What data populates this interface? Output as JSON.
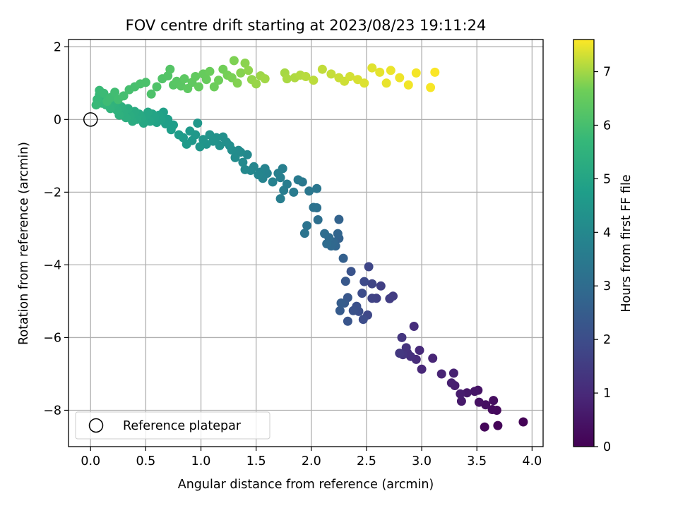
{
  "chart_data": {
    "type": "scatter",
    "title": "FOV centre drift starting at 2023/08/23 19:11:24",
    "xlabel": "Angular distance from reference (arcmin)",
    "ylabel": "Rotation from reference (arcmin)",
    "xlim": [
      -0.2,
      4.1
    ],
    "ylim": [
      -9.0,
      2.2
    ],
    "xticks": [
      0.0,
      0.5,
      1.0,
      1.5,
      2.0,
      2.5,
      3.0,
      3.5,
      4.0
    ],
    "xtick_labels": [
      "0.0",
      "0.5",
      "1.0",
      "1.5",
      "2.0",
      "2.5",
      "3.0",
      "3.5",
      "4.0"
    ],
    "yticks": [
      2,
      0,
      -2,
      -4,
      -6,
      -8
    ],
    "ytick_labels": [
      "2",
      "0",
      "−2",
      "−4",
      "−6",
      "−8"
    ],
    "grid": true,
    "legend": {
      "placement": "lower-left",
      "entries": [
        "Reference platepar"
      ]
    },
    "reference_point": {
      "x": 0.0,
      "y": 0.0,
      "label": "Reference platepar"
    },
    "colorbar": {
      "label": "Hours from first FF file",
      "colormap": "viridis",
      "range": [
        0,
        7.6
      ],
      "ticks": [
        0,
        1,
        2,
        3,
        4,
        5,
        6,
        7
      ],
      "tick_labels": [
        "0",
        "1",
        "2",
        "3",
        "4",
        "5",
        "6",
        "7"
      ]
    },
    "series": [
      {
        "color_by": "hours",
        "points": [
          [
            3.92,
            -8.32,
            0.05
          ],
          [
            3.69,
            -8.42,
            0.1
          ],
          [
            3.57,
            -8.46,
            0.15
          ],
          [
            3.68,
            -8.0,
            0.2
          ],
          [
            3.64,
            -7.98,
            0.25
          ],
          [
            3.65,
            -7.73,
            0.3
          ],
          [
            3.58,
            -7.85,
            0.35
          ],
          [
            3.52,
            -7.78,
            0.4
          ],
          [
            3.51,
            -7.45,
            0.45
          ],
          [
            3.48,
            -7.48,
            0.5
          ],
          [
            3.41,
            -7.52,
            0.55
          ],
          [
            3.36,
            -7.75,
            0.6
          ],
          [
            3.35,
            -7.55,
            0.65
          ],
          [
            3.3,
            -7.32,
            0.7
          ],
          [
            3.27,
            -7.25,
            0.75
          ],
          [
            3.29,
            -6.98,
            0.8
          ],
          [
            3.18,
            -7.0,
            0.85
          ],
          [
            3.1,
            -6.57,
            0.9
          ],
          [
            3.0,
            -6.87,
            0.95
          ],
          [
            2.98,
            -6.35,
            1.0
          ],
          [
            2.95,
            -6.6,
            1.05
          ],
          [
            2.93,
            -5.69,
            1.1
          ],
          [
            2.9,
            -6.52,
            1.15
          ],
          [
            2.87,
            -6.42,
            1.2
          ],
          [
            2.86,
            -6.28,
            1.25
          ],
          [
            2.83,
            -6.47,
            1.3
          ],
          [
            2.82,
            -6.0,
            1.35
          ],
          [
            2.8,
            -6.43,
            1.4
          ],
          [
            2.74,
            -4.86,
            1.5
          ],
          [
            2.71,
            -4.93,
            1.55
          ],
          [
            2.63,
            -4.58,
            1.6
          ],
          [
            2.59,
            -4.92,
            1.65
          ],
          [
            2.55,
            -4.92,
            1.7
          ],
          [
            2.55,
            -4.52,
            1.75
          ],
          [
            2.52,
            -4.05,
            1.8
          ],
          [
            2.51,
            -5.38,
            1.85
          ],
          [
            2.48,
            -4.46,
            1.9
          ],
          [
            2.46,
            -4.78,
            1.95
          ],
          [
            2.47,
            -5.5,
            2.0
          ],
          [
            2.43,
            -5.28,
            2.05
          ],
          [
            2.41,
            -5.14,
            2.1
          ],
          [
            2.38,
            -5.26,
            2.15
          ],
          [
            2.36,
            -4.18,
            2.2
          ],
          [
            2.33,
            -5.55,
            2.25
          ],
          [
            2.33,
            -4.9,
            2.3
          ],
          [
            2.31,
            -4.45,
            2.35
          ],
          [
            2.3,
            -5.05,
            2.4
          ],
          [
            2.26,
            -5.26,
            2.45
          ],
          [
            2.27,
            -5.05,
            2.5
          ],
          [
            2.29,
            -3.82,
            2.6
          ],
          [
            2.25,
            -3.27,
            2.65
          ],
          [
            2.25,
            -2.75,
            2.7
          ],
          [
            2.24,
            -3.14,
            2.75
          ],
          [
            2.22,
            -3.48,
            2.8
          ],
          [
            2.2,
            -3.37,
            2.85
          ],
          [
            2.18,
            -3.48,
            2.9
          ],
          [
            2.16,
            -3.25,
            2.95
          ],
          [
            2.14,
            -3.42,
            3.0
          ],
          [
            2.12,
            -3.14,
            3.05
          ],
          [
            2.06,
            -2.76,
            3.1
          ],
          [
            2.05,
            -2.43,
            3.15
          ],
          [
            2.02,
            -2.42,
            3.2
          ],
          [
            1.96,
            -2.92,
            3.25
          ],
          [
            1.94,
            -3.13,
            3.3
          ],
          [
            2.05,
            -1.9,
            3.35
          ],
          [
            1.98,
            -1.97,
            3.4
          ],
          [
            1.92,
            -1.72,
            3.45
          ],
          [
            1.88,
            -1.66,
            3.5
          ],
          [
            1.84,
            -2.0,
            3.55
          ],
          [
            1.78,
            -1.78,
            3.6
          ],
          [
            1.75,
            -1.95,
            3.62
          ],
          [
            1.72,
            -2.18,
            3.65
          ],
          [
            1.72,
            -1.6,
            3.68
          ],
          [
            1.74,
            -1.35,
            3.7
          ],
          [
            1.7,
            -1.48,
            3.73
          ],
          [
            1.65,
            -1.72,
            3.76
          ],
          [
            1.6,
            -1.48,
            3.79
          ],
          [
            1.58,
            -1.35,
            3.82
          ],
          [
            1.56,
            -1.62,
            3.85
          ],
          [
            1.54,
            -1.45,
            3.88
          ],
          [
            1.52,
            -1.52,
            3.91
          ],
          [
            1.48,
            -1.3,
            3.94
          ],
          [
            1.45,
            -1.4,
            3.97
          ],
          [
            1.42,
            -0.97,
            4.0
          ],
          [
            1.4,
            -1.38,
            4.03
          ],
          [
            1.38,
            -1.18,
            4.06
          ],
          [
            1.36,
            -0.9,
            4.09
          ],
          [
            1.34,
            -0.85,
            4.12
          ],
          [
            1.31,
            -1.05,
            4.15
          ],
          [
            1.28,
            -0.84,
            4.18
          ],
          [
            1.26,
            -0.72,
            4.21
          ],
          [
            1.23,
            -0.62,
            4.24
          ],
          [
            1.2,
            -0.48,
            4.27
          ],
          [
            1.17,
            -0.72,
            4.3
          ],
          [
            1.14,
            -0.5,
            4.33
          ],
          [
            1.11,
            -0.6,
            4.36
          ],
          [
            1.08,
            -0.42,
            4.39
          ],
          [
            1.05,
            -0.68,
            4.42
          ],
          [
            1.02,
            -0.55,
            4.45
          ],
          [
            0.99,
            -0.75,
            4.48
          ],
          [
            0.97,
            -0.1,
            4.5
          ],
          [
            0.95,
            -0.42,
            4.53
          ],
          [
            0.92,
            -0.58,
            4.56
          ],
          [
            0.9,
            -0.32,
            4.59
          ],
          [
            0.87,
            -0.68,
            4.62
          ],
          [
            0.84,
            -0.5,
            4.65
          ],
          [
            0.8,
            -0.42,
            4.68
          ],
          [
            0.75,
            -0.15,
            4.71
          ],
          [
            0.73,
            -0.28,
            4.74
          ],
          [
            0.7,
            0.0,
            4.77
          ],
          [
            0.68,
            -0.12,
            4.8
          ],
          [
            0.66,
            0.2,
            4.83
          ],
          [
            0.64,
            0.0,
            4.86
          ],
          [
            0.62,
            0.12,
            4.89
          ],
          [
            0.6,
            -0.08,
            4.92
          ],
          [
            0.58,
            0.05,
            4.95
          ],
          [
            0.56,
            0.15,
            4.98
          ],
          [
            0.54,
            -0.05,
            5.01
          ],
          [
            0.52,
            0.2,
            5.04
          ],
          [
            0.5,
            0.1,
            5.07
          ],
          [
            0.48,
            -0.1,
            5.1
          ],
          [
            0.46,
            0.05,
            5.13
          ],
          [
            0.44,
            0.15,
            5.16
          ],
          [
            0.42,
            0.0,
            5.19
          ],
          [
            0.4,
            0.22,
            5.22
          ],
          [
            0.38,
            -0.05,
            5.25
          ],
          [
            0.36,
            0.1,
            5.28
          ],
          [
            0.34,
            0.3,
            5.31
          ],
          [
            0.32,
            0.05,
            5.34
          ],
          [
            0.3,
            0.2,
            5.37
          ],
          [
            0.28,
            0.35,
            5.4
          ],
          [
            0.26,
            0.12,
            5.43
          ],
          [
            0.24,
            0.25,
            5.46
          ],
          [
            0.22,
            0.4,
            5.49
          ],
          [
            0.2,
            0.45,
            5.52
          ],
          [
            0.18,
            0.3,
            5.55
          ],
          [
            0.16,
            0.55,
            5.58
          ],
          [
            0.14,
            0.4,
            5.61
          ],
          [
            0.12,
            0.62,
            5.64
          ],
          [
            0.1,
            0.45,
            5.67
          ],
          [
            0.08,
            0.68,
            5.7
          ],
          [
            0.06,
            0.55,
            5.73
          ],
          [
            0.05,
            0.4,
            5.76
          ],
          [
            0.08,
            0.8,
            5.79
          ],
          [
            0.12,
            0.72,
            5.82
          ],
          [
            0.15,
            0.5,
            5.85
          ],
          [
            0.18,
            0.6,
            5.88
          ],
          [
            0.22,
            0.75,
            5.91
          ],
          [
            0.25,
            0.55,
            5.94
          ],
          [
            0.3,
            0.65,
            5.97
          ],
          [
            0.35,
            0.82,
            6.0
          ],
          [
            0.4,
            0.9,
            6.03
          ],
          [
            0.45,
            0.98,
            6.06
          ],
          [
            0.5,
            1.02,
            6.09
          ],
          [
            0.55,
            0.7,
            6.12
          ],
          [
            0.6,
            0.9,
            6.15
          ],
          [
            0.65,
            1.12,
            6.18
          ],
          [
            0.7,
            1.2,
            6.21
          ],
          [
            0.72,
            1.38,
            6.24
          ],
          [
            0.75,
            0.95,
            6.27
          ],
          [
            0.78,
            1.05,
            6.3
          ],
          [
            0.82,
            0.92,
            6.33
          ],
          [
            0.85,
            1.12,
            6.36
          ],
          [
            0.88,
            0.85,
            6.39
          ],
          [
            0.92,
            1.02,
            6.42
          ],
          [
            0.95,
            1.18,
            6.45
          ],
          [
            0.98,
            0.9,
            6.48
          ],
          [
            1.02,
            1.25,
            6.51
          ],
          [
            1.05,
            1.1,
            6.54
          ],
          [
            1.08,
            1.32,
            6.57
          ],
          [
            1.12,
            0.9,
            6.6
          ],
          [
            1.16,
            1.08,
            6.63
          ],
          [
            1.2,
            1.38,
            6.66
          ],
          [
            1.24,
            1.22,
            6.69
          ],
          [
            1.28,
            1.15,
            6.72
          ],
          [
            1.3,
            1.62,
            6.75
          ],
          [
            1.33,
            1.0,
            6.78
          ],
          [
            1.36,
            1.28,
            6.81
          ],
          [
            1.4,
            1.55,
            6.84
          ],
          [
            1.43,
            1.35,
            6.87
          ],
          [
            1.46,
            1.1,
            6.9
          ],
          [
            1.5,
            0.98,
            6.93
          ],
          [
            1.54,
            1.2,
            6.96
          ],
          [
            1.58,
            1.12,
            6.99
          ],
          [
            1.76,
            1.28,
            7.02
          ],
          [
            1.78,
            1.12,
            7.05
          ],
          [
            1.85,
            1.15,
            7.08
          ],
          [
            1.9,
            1.22,
            7.11
          ],
          [
            1.95,
            1.18,
            7.14
          ],
          [
            2.02,
            1.08,
            7.17
          ],
          [
            2.1,
            1.38,
            7.2
          ],
          [
            2.18,
            1.25,
            7.23
          ],
          [
            2.25,
            1.15,
            7.26
          ],
          [
            2.3,
            1.05,
            7.29
          ],
          [
            2.35,
            1.18,
            7.32
          ],
          [
            2.42,
            1.1,
            7.35
          ],
          [
            2.48,
            1.0,
            7.38
          ],
          [
            2.55,
            1.42,
            7.41
          ],
          [
            2.62,
            1.3,
            7.44
          ],
          [
            2.68,
            1.0,
            7.46
          ],
          [
            2.72,
            1.35,
            7.48
          ],
          [
            2.8,
            1.15,
            7.5
          ],
          [
            2.88,
            0.95,
            7.52
          ],
          [
            2.95,
            1.28,
            7.54
          ],
          [
            3.08,
            0.88,
            7.56
          ],
          [
            3.12,
            1.3,
            7.58
          ]
        ]
      }
    ]
  }
}
